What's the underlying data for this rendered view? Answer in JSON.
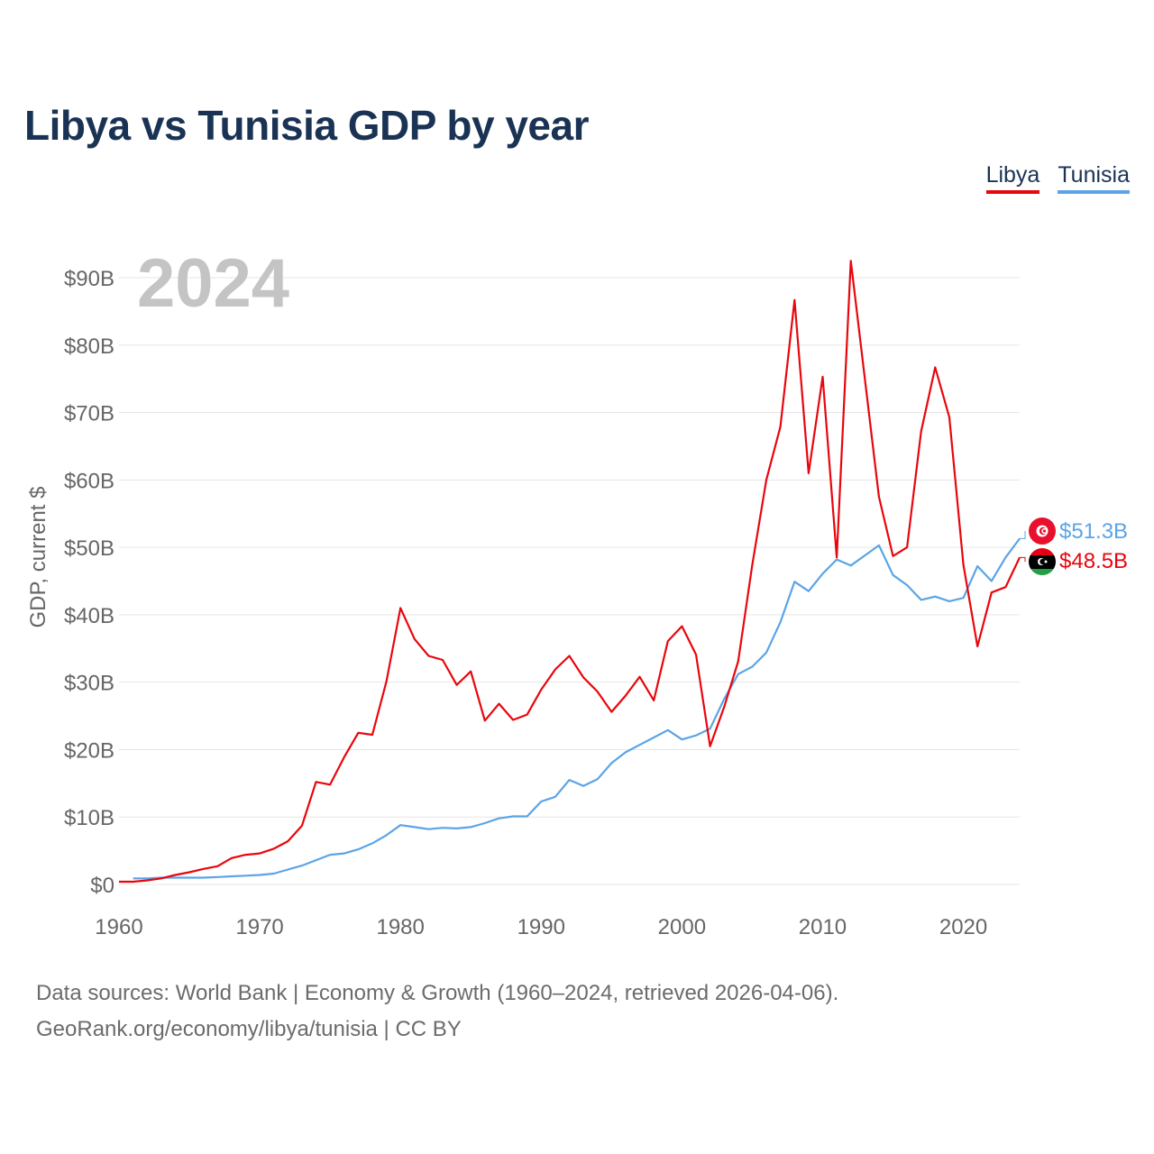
{
  "title": "Libya vs Tunisia GDP by year",
  "legend": [
    {
      "name": "Libya",
      "color": "#e8060d"
    },
    {
      "name": "Tunisia",
      "color": "#5ba4e6"
    }
  ],
  "year_label": "2024",
  "end_labels": {
    "tunisia": "$51.3B",
    "libya": "$48.5B"
  },
  "source_line1": "Data sources: World Bank | Economy & Growth (1960–2024, retrieved 2026-04-06).",
  "source_line2": "GeoRank.org/economy/libya/tunisia | CC BY",
  "chart_data": {
    "type": "line",
    "title": "Libya vs Tunisia GDP by year",
    "xlabel": "",
    "ylabel": "GDP, current $",
    "xlim": [
      1960,
      2024
    ],
    "ylim": [
      0,
      95
    ],
    "units": "billions of current US$",
    "y_ticks": [
      0,
      10,
      20,
      30,
      40,
      50,
      60,
      70,
      80,
      90
    ],
    "y_tick_labels": [
      "$0",
      "$10B",
      "$20B",
      "$30B",
      "$40B",
      "$50B",
      "$60B",
      "$70B",
      "$80B",
      "$90B"
    ],
    "x_ticks": [
      1960,
      1970,
      1980,
      1990,
      2000,
      2010,
      2020
    ],
    "x_tick_labels": [
      "1960",
      "1970",
      "1980",
      "1990",
      "2000",
      "2010",
      "2020"
    ],
    "grid": true,
    "legend_position": "top-right",
    "series": [
      {
        "name": "Libya",
        "color": "#e8060d",
        "x": [
          1960,
          1961,
          1962,
          1963,
          1964,
          1965,
          1966,
          1967,
          1968,
          1969,
          1970,
          1971,
          1972,
          1973,
          1974,
          1975,
          1976,
          1977,
          1978,
          1979,
          1980,
          1981,
          1982,
          1983,
          1984,
          1985,
          1986,
          1987,
          1988,
          1989,
          1990,
          1991,
          1992,
          1993,
          1994,
          1995,
          1996,
          1997,
          1998,
          1999,
          2000,
          2001,
          2002,
          2003,
          2004,
          2005,
          2006,
          2007,
          2008,
          2009,
          2010,
          2011,
          2012,
          2013,
          2014,
          2015,
          2016,
          2017,
          2018,
          2019,
          2020,
          2021,
          2022,
          2023,
          2024
        ],
        "values": [
          0.4,
          0.4,
          0.6,
          0.9,
          1.4,
          1.8,
          2.3,
          2.7,
          3.9,
          4.4,
          4.6,
          5.3,
          6.4,
          8.7,
          15.2,
          14.8,
          18.9,
          22.5,
          22.2,
          30.1,
          41.0,
          36.4,
          33.9,
          33.3,
          29.6,
          31.6,
          24.3,
          26.8,
          24.4,
          25.2,
          28.9,
          31.9,
          33.9,
          30.7,
          28.6,
          25.6,
          28.0,
          30.8,
          27.3,
          36.1,
          38.3,
          34.1,
          20.5,
          26.3,
          33.1,
          47.4,
          60.0,
          67.9,
          86.7,
          61.0,
          75.3,
          48.5,
          92.5,
          75.0,
          57.5,
          48.7,
          50.0,
          67.2,
          76.7,
          69.3,
          47.4,
          35.3,
          43.3,
          44.1,
          48.5
        ]
      },
      {
        "name": "Tunisia",
        "color": "#5ba4e6",
        "x": [
          1961,
          1962,
          1963,
          1964,
          1965,
          1966,
          1967,
          1968,
          1969,
          1970,
          1971,
          1972,
          1973,
          1974,
          1975,
          1976,
          1977,
          1978,
          1979,
          1980,
          1981,
          1982,
          1983,
          1984,
          1985,
          1986,
          1987,
          1988,
          1989,
          1990,
          1991,
          1992,
          1993,
          1994,
          1995,
          1996,
          1997,
          1998,
          1999,
          2000,
          2001,
          2002,
          2003,
          2004,
          2005,
          2006,
          2007,
          2008,
          2009,
          2010,
          2011,
          2012,
          2013,
          2014,
          2015,
          2016,
          2017,
          2018,
          2019,
          2020,
          2021,
          2022,
          2023,
          2024
        ],
        "values": [
          0.9,
          0.9,
          1.0,
          1.0,
          1.0,
          1.0,
          1.1,
          1.2,
          1.3,
          1.4,
          1.6,
          2.2,
          2.8,
          3.6,
          4.4,
          4.6,
          5.2,
          6.1,
          7.3,
          8.8,
          8.5,
          8.2,
          8.4,
          8.3,
          8.5,
          9.1,
          9.8,
          10.1,
          10.1,
          12.3,
          13.0,
          15.5,
          14.6,
          15.6,
          18.0,
          19.6,
          20.7,
          21.8,
          22.9,
          21.5,
          22.1,
          23.1,
          27.5,
          31.2,
          32.3,
          34.4,
          38.9,
          44.9,
          43.5,
          46.1,
          48.2,
          47.3,
          48.8,
          50.3,
          45.9,
          44.4,
          42.2,
          42.7,
          42.0,
          42.5,
          47.2,
          45.0,
          48.5,
          51.3
        ]
      }
    ]
  }
}
